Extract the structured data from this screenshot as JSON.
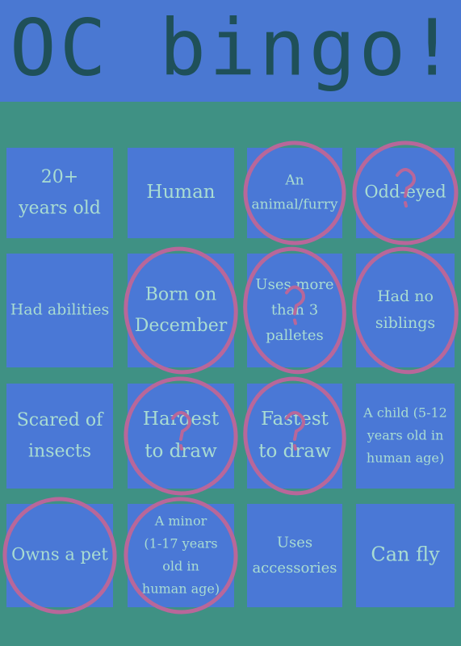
{
  "title": "OC bingo!",
  "grid": {
    "rows": [
      [
        {
          "lines": [
            "20+",
            "years old"
          ],
          "circled": false,
          "question": false
        },
        {
          "lines": [
            "Human"
          ],
          "circled": false,
          "question": false
        },
        {
          "lines": [
            "An",
            "animal/furry"
          ],
          "circled": true,
          "question": false
        },
        {
          "lines": [
            "Odd-eyed"
          ],
          "circled": true,
          "question": true
        }
      ],
      [
        {
          "lines": [
            "Had abilities"
          ],
          "circled": false,
          "question": false
        },
        {
          "lines": [
            "Born on",
            "December"
          ],
          "circled": true,
          "question": false
        },
        {
          "lines": [
            "Uses more",
            "than 3",
            "palletes"
          ],
          "circled": true,
          "question": true
        },
        {
          "lines": [
            "Had no",
            "siblings"
          ],
          "circled": true,
          "question": false
        }
      ],
      [
        {
          "lines": [
            "Scared of",
            "insects"
          ],
          "circled": false,
          "question": false
        },
        {
          "lines": [
            "Hardest",
            "to draw"
          ],
          "circled": true,
          "question": true
        },
        {
          "lines": [
            "Fastest",
            "to draw"
          ],
          "circled": true,
          "question": true
        },
        {
          "lines": [
            "A child (5-12",
            "years old in",
            "human age)"
          ],
          "circled": false,
          "question": false
        }
      ],
      [
        {
          "lines": [
            "Owns a pet"
          ],
          "circled": true,
          "question": false
        },
        {
          "lines": [
            "A minor",
            "(1-17 years",
            "old in",
            "human age)"
          ],
          "circled": true,
          "question": false
        },
        {
          "lines": [
            "Uses",
            "accessories"
          ],
          "circled": false,
          "question": false
        },
        {
          "lines": [
            "Can fly"
          ],
          "circled": false,
          "question": false
        }
      ]
    ]
  }
}
